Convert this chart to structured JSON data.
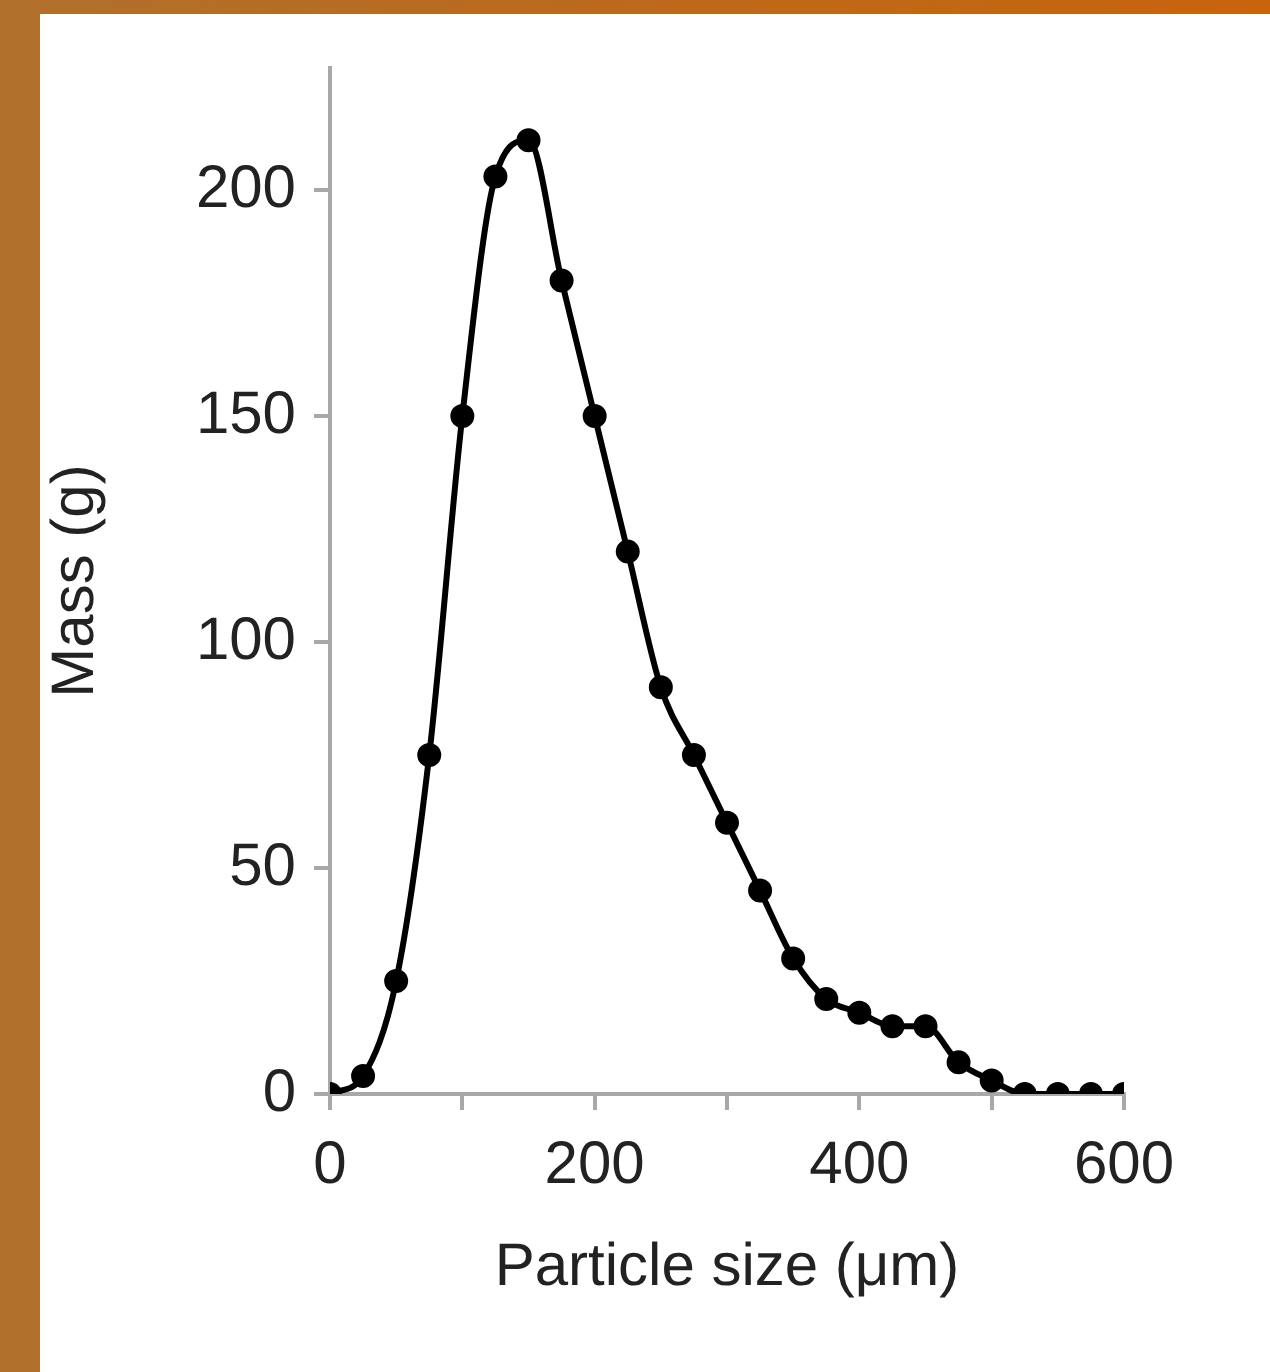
{
  "chart_data": {
    "type": "line",
    "xlabel": "Particle size (μm)",
    "ylabel": "Mass (g)",
    "x": [
      0,
      25,
      50,
      75,
      100,
      125,
      150,
      175,
      200,
      225,
      250,
      275,
      300,
      325,
      350,
      375,
      400,
      425,
      450,
      475,
      500,
      525,
      550,
      575,
      600
    ],
    "series": [
      {
        "color": "#000000",
        "values": [
          0,
          4,
          25,
          75,
          150,
          203,
          211,
          180,
          150,
          120,
          90,
          75,
          60,
          45,
          30,
          21,
          18,
          15,
          15,
          7,
          3,
          0,
          0,
          0,
          0
        ]
      }
    ],
    "xlim": [
      0,
      600
    ],
    "xticks": [
      0,
      {
        "value": 100,
        "label": null
      },
      200,
      {
        "value": 300,
        "label": null
      },
      400,
      {
        "value": 500,
        "label": null
      },
      600
    ],
    "ylim": [
      0,
      227
    ],
    "yticks": [
      0,
      50,
      100,
      150,
      200
    ],
    "grid": false,
    "legend": false,
    "marker": "circle",
    "line_style": "solid"
  }
}
